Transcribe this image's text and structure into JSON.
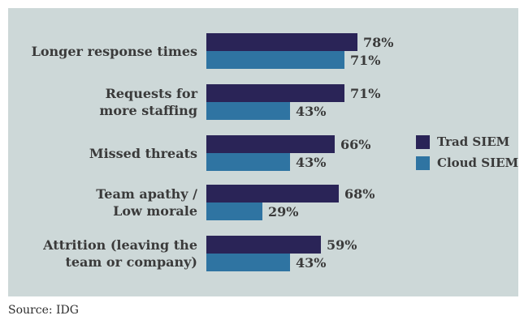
{
  "colors": {
    "panel_bg": "#cdd8d8",
    "trad": "#2a2457",
    "cloud": "#2f74a2",
    "text": "#3a3a3a"
  },
  "legend": [
    {
      "label": "Trad SIEM"
    },
    {
      "label": "Cloud SIEM"
    }
  ],
  "rows": [
    {
      "label": "Longer response times",
      "trad": 78,
      "cloud": 71,
      "trad_label": "78%",
      "cloud_label": "71%"
    },
    {
      "label": "Requests for\nmore staffing",
      "trad": 71,
      "cloud": 43,
      "trad_label": "71%",
      "cloud_label": "43%"
    },
    {
      "label": "Missed threats",
      "trad": 66,
      "cloud": 43,
      "trad_label": "66%",
      "cloud_label": "43%"
    },
    {
      "label": "Team apathy /\nLow morale",
      "trad": 68,
      "cloud": 29,
      "trad_label": "68%",
      "cloud_label": "29%"
    },
    {
      "label": "Attrition (leaving the\nteam or company)",
      "trad": 59,
      "cloud": 43,
      "trad_label": "59%",
      "cloud_label": "43%"
    }
  ],
  "source_note": "Source: IDG",
  "chart_data": {
    "type": "bar",
    "orientation": "horizontal",
    "title": "",
    "xlabel": "",
    "ylabel": "",
    "xlim": [
      0,
      100
    ],
    "grid": false,
    "legend_position": "right-middle",
    "value_label_format": "percent",
    "categories": [
      "Longer response times",
      "Requests for more staffing",
      "Missed threats",
      "Team apathy / Low morale",
      "Attrition (leaving the team or company)"
    ],
    "series": [
      {
        "name": "Trad SIEM",
        "color": "#2a2457",
        "values": [
          78,
          71,
          66,
          68,
          59
        ]
      },
      {
        "name": "Cloud SIEM",
        "color": "#2f74a2",
        "values": [
          71,
          43,
          43,
          29,
          43
        ]
      }
    ],
    "source": "Source: IDG"
  }
}
